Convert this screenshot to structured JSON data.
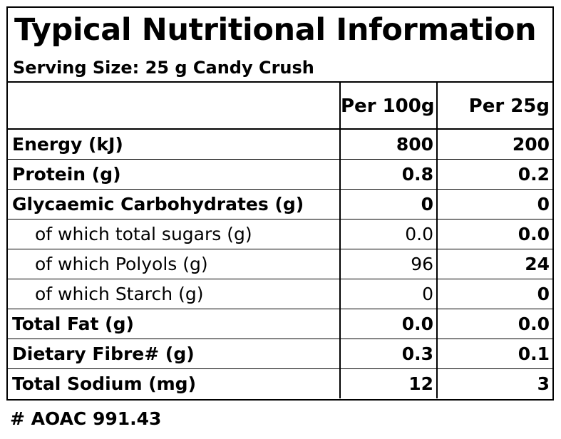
{
  "title": "Typical Nutritional Information",
  "serving_size": "Serving Size: 25 g Candy Crush",
  "columns": {
    "nutrient": "",
    "per_100g": "Per 100g",
    "per_25g": "Per 25g"
  },
  "rows": [
    {
      "label": "Energy (kJ)",
      "per_100g": "800",
      "per_25g": "200",
      "type": "main"
    },
    {
      "label": "Protein (g)",
      "per_100g": "0.8",
      "per_25g": "0.2",
      "type": "main"
    },
    {
      "label": "Glycaemic Carbohydrates (g)",
      "per_100g": "0",
      "per_25g": "0",
      "type": "main"
    },
    {
      "label": "of which total sugars (g)",
      "per_100g": "0.0",
      "per_25g": "0.0",
      "type": "sub"
    },
    {
      "label": "of which Polyols (g)",
      "per_100g": "96",
      "per_25g": "24",
      "type": "sub"
    },
    {
      "label": "of which Starch (g)",
      "per_100g": "0",
      "per_25g": "0",
      "type": "sub"
    },
    {
      "label": "Total Fat (g)",
      "per_100g": "0.0",
      "per_25g": "0.0",
      "type": "main"
    },
    {
      "label": "Dietary Fibre# (g)",
      "per_100g": "0.3",
      "per_25g": "0.1",
      "type": "main"
    },
    {
      "label": "Total Sodium (mg)",
      "per_100g": "12",
      "per_25g": "3",
      "type": "main"
    }
  ],
  "footnote": "# AOAC 991.43"
}
